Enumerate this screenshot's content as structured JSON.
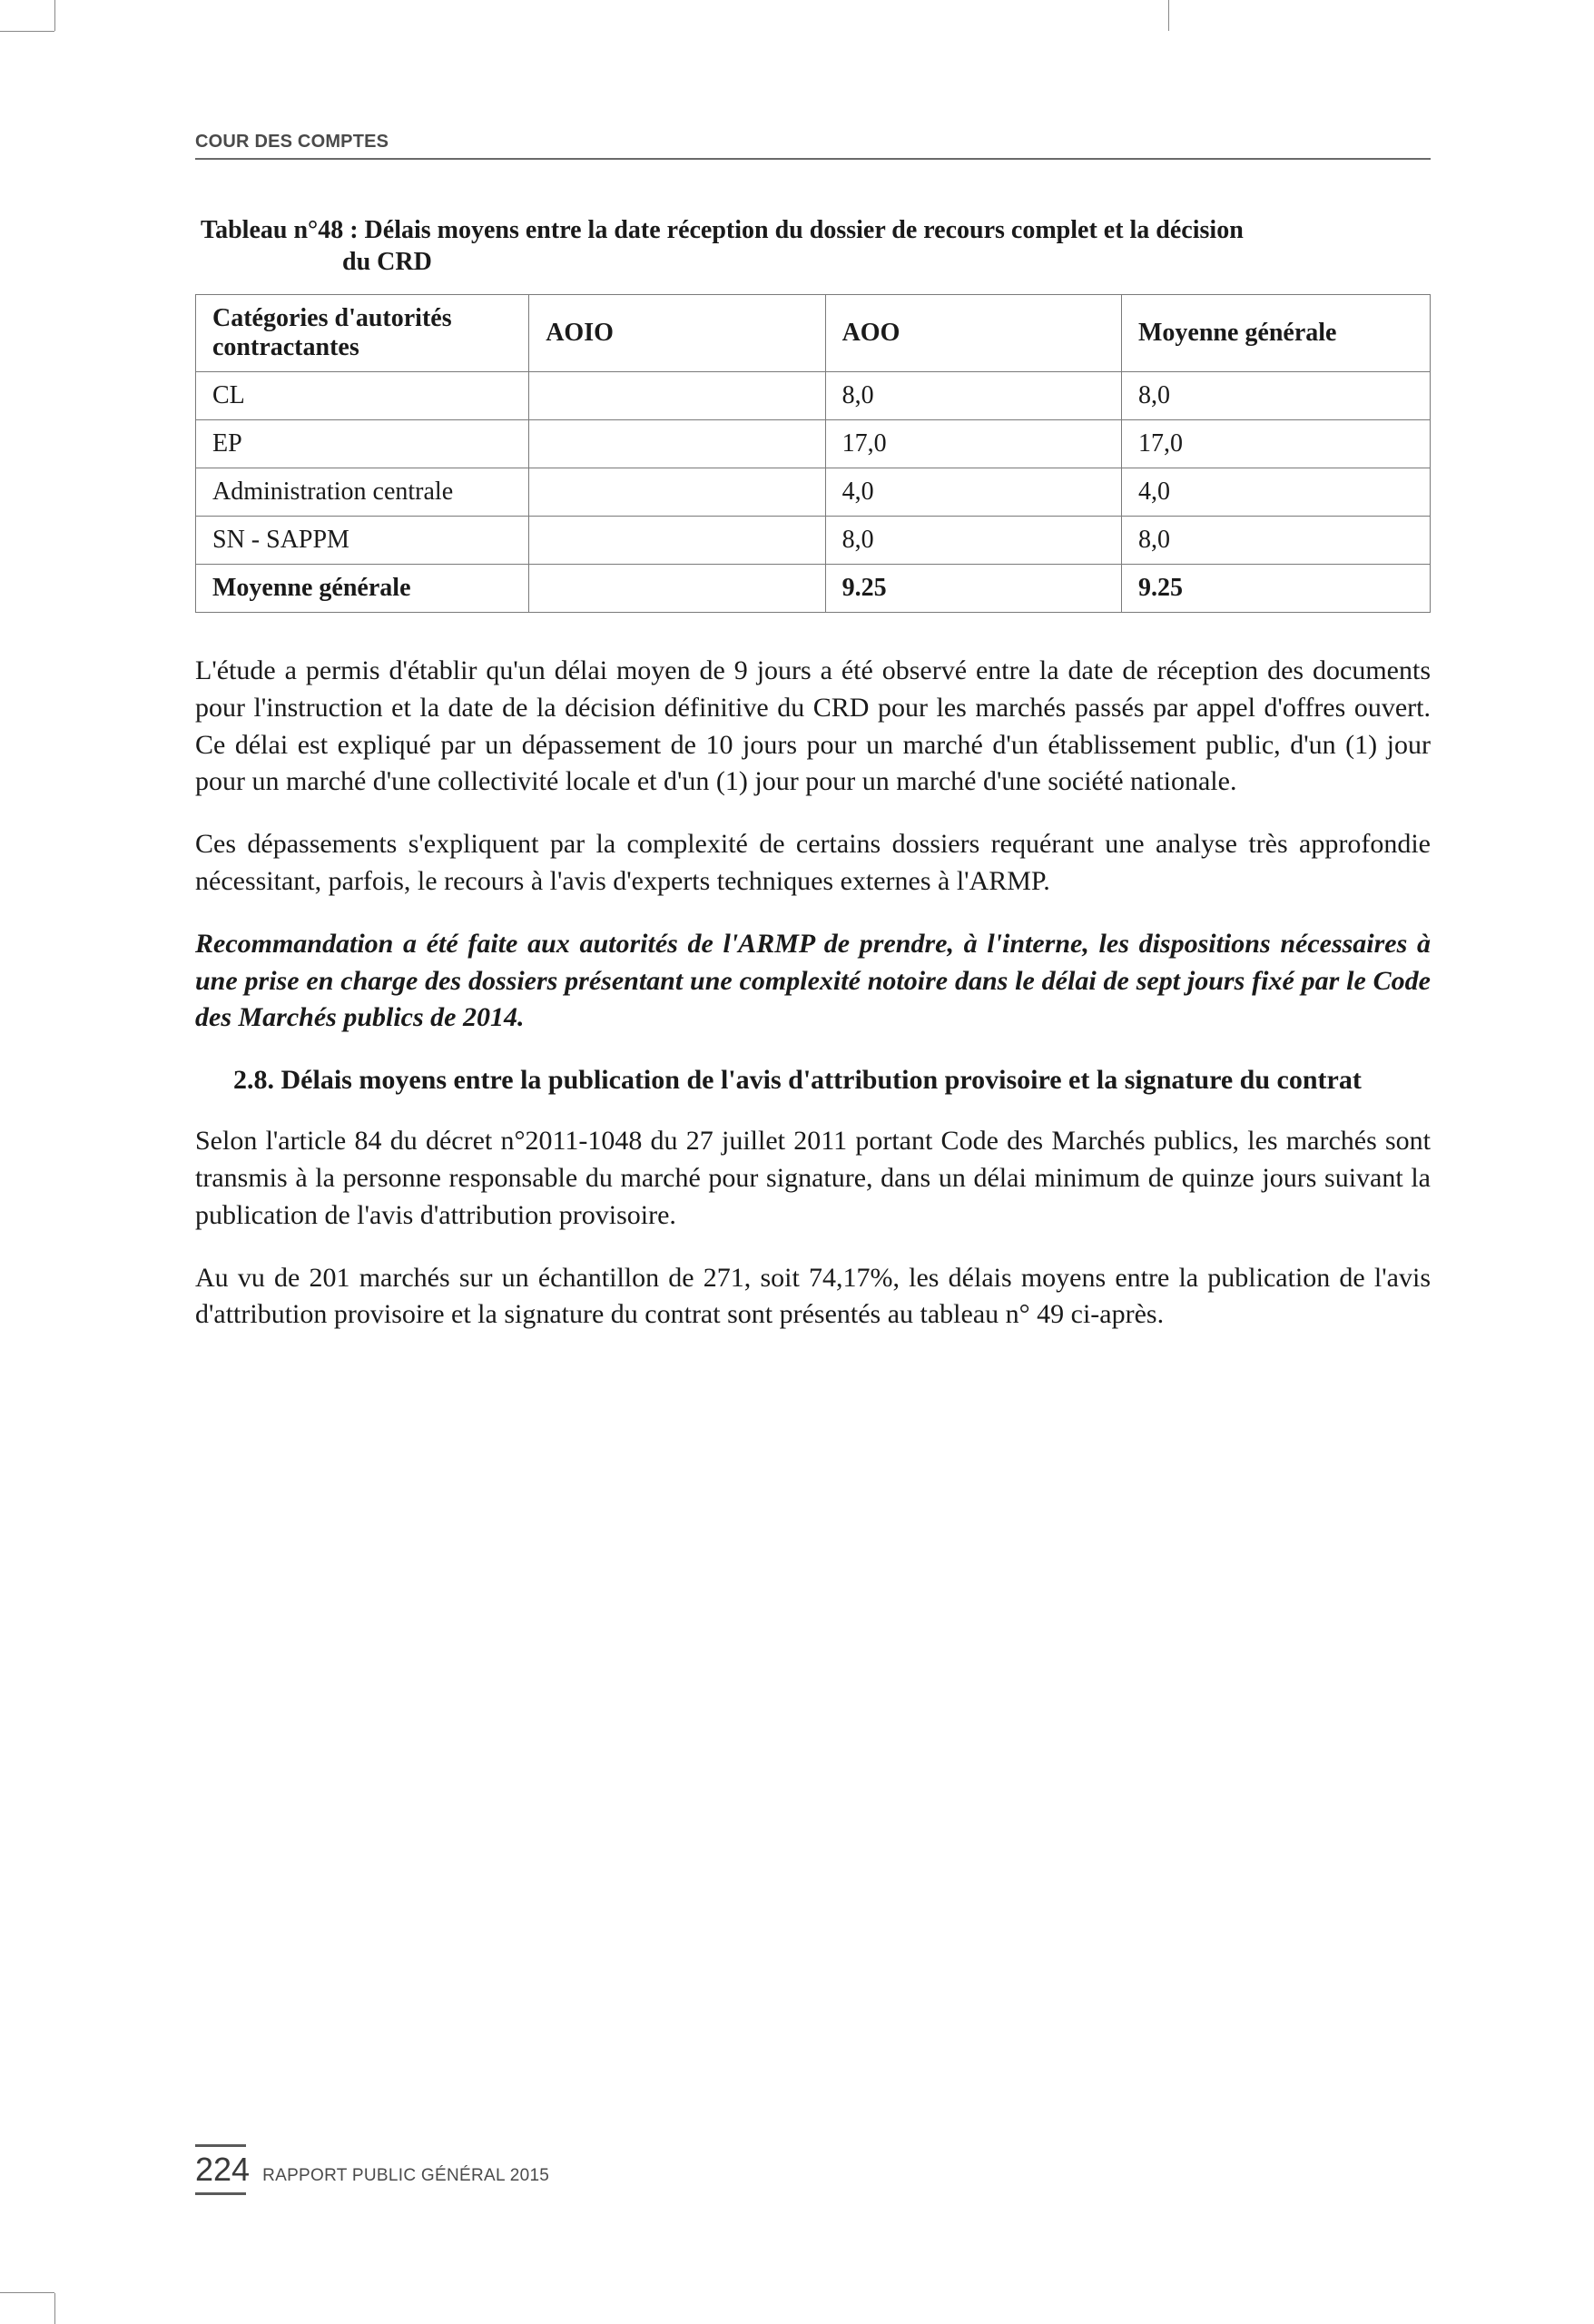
{
  "running_head": "COUR DES COMPTES",
  "table": {
    "caption_prefix": "Tableau n°48 :",
    "caption_line1": "Tableau n°48 : Délais moyens entre la date réception du dossier de recours complet et la décision",
    "caption_line2": "du CRD",
    "columns": [
      "Catégories d'autorités contractantes",
      "AOIO",
      "AOO",
      "Moyenne générale"
    ],
    "rows": [
      {
        "c1": "CL",
        "c2": "",
        "c3": "8,0",
        "c4": "8,0"
      },
      {
        "c1": "EP",
        "c2": "",
        "c3": "17,0",
        "c4": "17,0"
      },
      {
        "c1": "Administration centrale",
        "c2": "",
        "c3": "4,0",
        "c4": "4,0"
      },
      {
        "c1": "SN - SAPPM",
        "c2": "",
        "c3": "8,0",
        "c4": "8,0"
      }
    ],
    "total": {
      "c1": "Moyenne générale",
      "c2": "",
      "c3": "9.25",
      "c4": "9.25"
    }
  },
  "paragraphs": {
    "p1": "L'étude a permis d'établir qu'un délai moyen de 9 jours a été observé entre la date de réception des documents pour l'instruction et la date de la décision définitive du CRD pour les marchés passés par appel d'offres ouvert. Ce délai est expliqué par un dépassement de 10 jours pour un marché d'un établissement public, d'un (1) jour pour un marché d'une collectivité locale et  d'un (1) jour pour un marché d'une société nationale.",
    "p2": "Ces dépassements s'expliquent par la complexité de certains dossiers requérant une analyse très approfondie nécessitant, parfois, le recours à l'avis d'experts techniques externes à l'ARMP.",
    "reco": "Recommandation a été faite aux autorités de l'ARMP de prendre, à l'interne, les dispositions nécessaires à une prise en charge des dossiers présentant une complexité notoire dans le délai de sept jours fixé par le Code des Marchés publics de 2014.",
    "heading_num": "2.8.",
    "heading_text": "Délais moyens entre la publication de l'avis d'attribution provisoire et la signature du contrat",
    "p3": "Selon l'article 84 du décret n°2011-1048 du 27 juillet 2011 portant Code des Marchés publics, les marchés sont transmis à la personne responsable du marché pour signature, dans un délai minimum de quinze jours suivant la publication de l'avis d'attribution provisoire.",
    "p4": "Au vu de 201 marchés sur un échantillon de 271, soit 74,17%, les délais moyens entre la publication de l'avis d'attribution provisoire et la signature du contrat sont présentés au tableau n° 49 ci-après."
  },
  "footer": {
    "page_number": "224",
    "label": "RAPPORT PUBLIC GÉNÉRAL 2015"
  },
  "colors": {
    "text": "#1a1a1a",
    "rule": "#6a6a6a",
    "table_border": "#7a7a7a",
    "footer_text": "#4a4a4a"
  }
}
